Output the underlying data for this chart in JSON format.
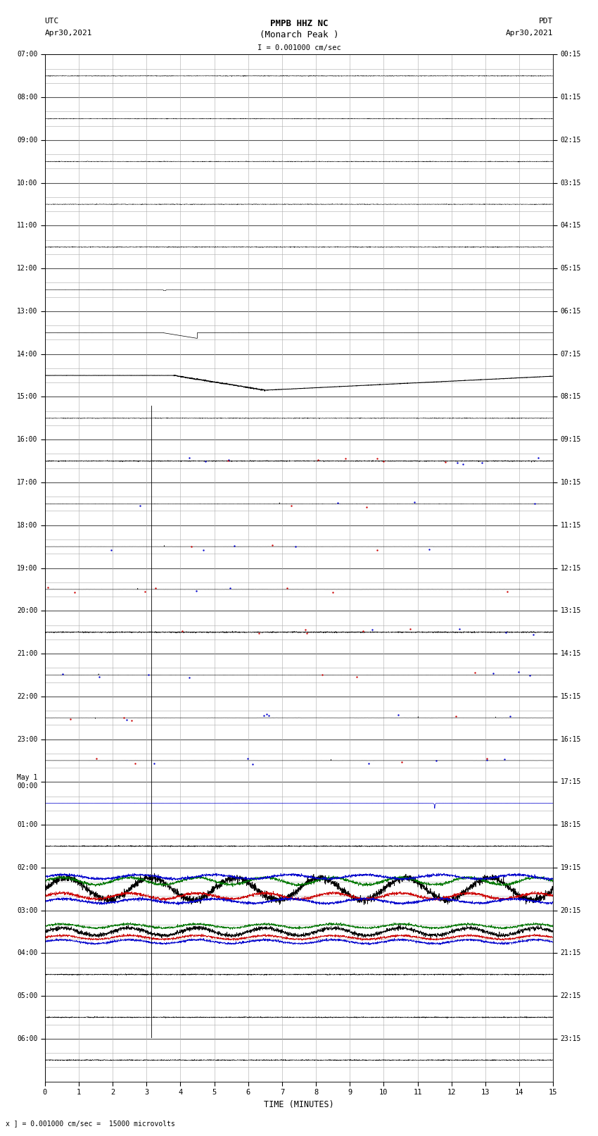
{
  "title_line1": "PMPB HHZ NC",
  "title_line2": "(Monarch Peak )",
  "title_line3": "I = 0.001000 cm/sec",
  "left_label_line1": "UTC",
  "left_label_line2": "Apr30,2021",
  "right_label_line1": "PDT",
  "right_label_line2": "Apr30,2021",
  "bottom_label": "TIME (MINUTES)",
  "footnote": "x ] = 0.001000 cm/sec =  15000 microvolts",
  "utc_times": [
    "07:00",
    "08:00",
    "09:00",
    "10:00",
    "11:00",
    "12:00",
    "13:00",
    "14:00",
    "15:00",
    "16:00",
    "17:00",
    "18:00",
    "19:00",
    "20:00",
    "21:00",
    "22:00",
    "23:00",
    "May 1\n00:00",
    "01:00",
    "02:00",
    "03:00",
    "04:00",
    "05:00",
    "06:00"
  ],
  "pdt_times": [
    "00:15",
    "01:15",
    "02:15",
    "03:15",
    "04:15",
    "05:15",
    "06:15",
    "07:15",
    "08:15",
    "09:15",
    "10:15",
    "11:15",
    "12:15",
    "13:15",
    "14:15",
    "15:15",
    "16:15",
    "17:15",
    "18:15",
    "19:15",
    "20:15",
    "21:15",
    "22:15",
    "23:15"
  ],
  "num_rows": 24,
  "num_minutes": 15,
  "sub_rows": 3,
  "bg_color": "#ffffff",
  "grid_color_major": "#555555",
  "grid_color_minor": "#aaaaaa",
  "trace_color_black": "#000000",
  "trace_color_blue": "#0000cc",
  "trace_color_red": "#cc0000",
  "trace_color_green": "#007700"
}
